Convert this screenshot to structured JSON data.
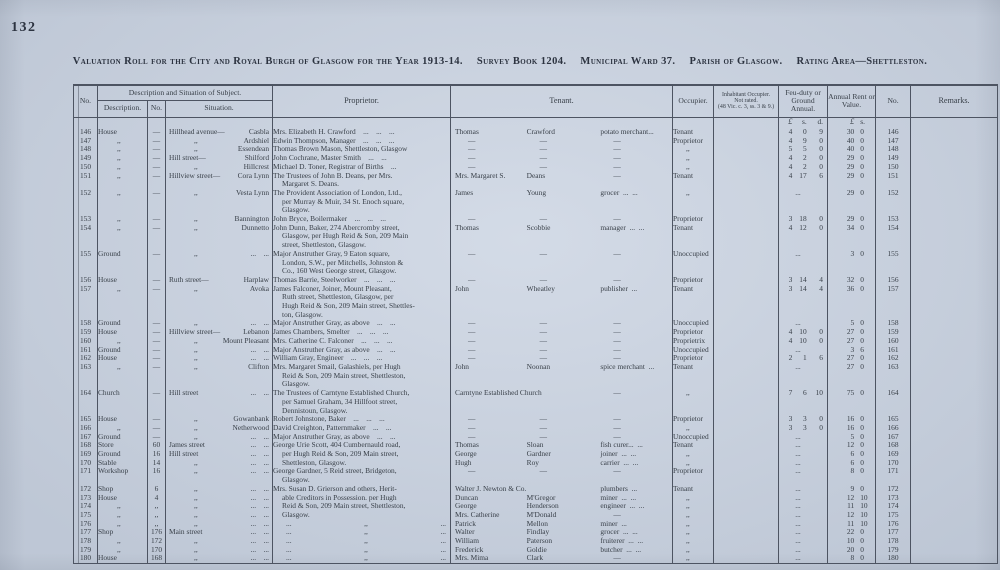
{
  "page": {
    "number": "132"
  },
  "colors": {
    "paper": "#cbd4e2",
    "ink": "#394049",
    "rule": "#4d5462"
  },
  "title": {
    "segments": [
      "Valuation Roll for the City and Royal Burgh of Glasgow for the Year 1913-14.",
      "Survey Book 1204.",
      "Municipal Ward 37.",
      "Parish of Glasgow.",
      "Rating Area—Shettleston."
    ]
  },
  "table": {
    "header": {
      "no": "No.",
      "desc_group": "Description and Situation of Subject.",
      "description": "Description.",
      "house_no": "No.",
      "situation": "Situation.",
      "proprietor": "Proprietor.",
      "tenant": "Tenant.",
      "occupier": "Occupier.",
      "inhabitant1": "Inhabitant Occupier.",
      "inhabitant2": "Not rated.",
      "inhabitant3": "(48 Vic. c. 3, ss. 3 & 9.)",
      "feu": "Feu-duty or Ground Annual.",
      "rent": "Annual Rent or Value.",
      "no_right": "No.",
      "remarks": "Remarks."
    },
    "units": {
      "feu_l": "£",
      "feu_s": "s.",
      "feu_d": "d.",
      "rent_l": "£",
      "rent_s": "s."
    },
    "rows": [
      {
        "no": "146",
        "desc": "House",
        "dno": "—",
        "sit": "Hillhead avenue—",
        "sitr": "Casbla",
        "prop": [
          "Mrs. Elizabeth H. Crawford ... ... ..."
        ],
        "t1": "Thomas",
        "t2": "Crawford",
        "t3": "potato merchant...",
        "occ": "Tenant",
        "feu": "4 0 9",
        "rent": "30 0",
        "no2": "146"
      },
      {
        "no": "147",
        "desc": ",,",
        "dno": "—",
        "sit": ",,",
        "sitr": "Ardshiel",
        "prop": [
          "Edwin Thompson, Manager ... ... ..."
        ],
        "t1": "—",
        "t2": "—",
        "t3": "—",
        "occ": "Proprietor",
        "feu": "4 9 0",
        "rent": "40 0",
        "no2": "147"
      },
      {
        "no": "148",
        "desc": ",,",
        "dno": "—",
        "sit": ",,",
        "sitr": "Essendean",
        "prop": [
          "Thomas Brown Mason, Shettleston, Glasgow"
        ],
        "t1": "—",
        "t2": "—",
        "t3": "—",
        "occ": ",,",
        "feu": "5 5 0",
        "rent": "40 0",
        "no2": "148"
      },
      {
        "no": "149",
        "desc": ",,",
        "dno": "—",
        "sit": "Hill street—",
        "sitr": "Shilford",
        "prop": [
          "John Cochrane, Master Smith ... ..."
        ],
        "t1": "—",
        "t2": "—",
        "t3": "—",
        "occ": ",,",
        "feu": "4 2 0",
        "rent": "29 0",
        "no2": "149"
      },
      {
        "no": "150",
        "desc": ",,",
        "dno": "—",
        "sit": ",,",
        "sitr": "Hillcrest",
        "prop": [
          "Michael D. Toner, Registrar of Births ..."
        ],
        "t1": "—",
        "t2": "—",
        "t3": "—",
        "occ": ",,",
        "feu": "4 2 0",
        "rent": "29 0",
        "no2": "150"
      },
      {
        "no": "151",
        "desc": ",,",
        "dno": "—",
        "sit": "Hillview street—",
        "sitr": "Cora Lynn",
        "prop": [
          "The Trustees of John B. Deans, per Mrs.",
          "Margaret S. Deans."
        ],
        "t1": "Mrs. Margaret S.",
        "t2": "Deans",
        "t3": "—",
        "occ": "Tenant",
        "feu": "4 17 6",
        "rent": "29 0",
        "no2": "151"
      },
      {
        "no": "152",
        "desc": ",,",
        "dno": "—",
        "sit": ",,",
        "sitr": "Vesta Lynn",
        "prop": [
          "The Provident Association of London, Ltd.,",
          "per Murray & Muir, 34 St. Enoch square,",
          "Glasgow."
        ],
        "t1": "James",
        "t2": "Young",
        "t3": "grocer ... ...",
        "occ": ",,",
        "feu": "...",
        "rent": "29 0",
        "no2": "152"
      },
      {
        "no": "153",
        "desc": ",,",
        "dno": "—",
        "sit": ",,",
        "sitr": "Bannington",
        "prop": [
          "John Bryce, Boilermaker ... ... ..."
        ],
        "t1": "—",
        "t2": "—",
        "t3": "—",
        "occ": "Proprietor",
        "feu": "3 18 0",
        "rent": "29 0",
        "no2": "153"
      },
      {
        "no": "154",
        "desc": ",,",
        "dno": "—",
        "sit": ",,",
        "sitr": "Dunnetto",
        "prop": [
          "John Dunn, Baker, 274 Abercromby street,",
          "Glasgow, per Hugh Reid & Son, 209 Main",
          "street, Shettleston, Glasgow."
        ],
        "t1": "Thomas",
        "t2": "Scobbie",
        "t3": "manager ... ...",
        "occ": "Tenant",
        "feu": "4 12 0",
        "rent": "34 0",
        "no2": "154"
      },
      {
        "no": "155",
        "desc": "Ground",
        "dno": "—",
        "sit": ",,",
        "sitr": "...  ...",
        "prop": [
          "Major Anstruther Gray, 9 Eaton square,",
          "London, S.W., per Mitchells, Johnston &",
          "Co., 160 West George street, Glasgow."
        ],
        "t1": "—",
        "t2": "—",
        "t3": "—",
        "occ": "Unoccupied",
        "feu": "...",
        "rent": "3 0",
        "no2": "155"
      },
      {
        "no": "156",
        "desc": "House",
        "dno": "—",
        "sit": "Ruth street—",
        "sitr": "Harplaw",
        "prop": [
          "Thomas Barrie, Steelworker ... ... ..."
        ],
        "t1": "—",
        "t2": "—",
        "t3": "—",
        "occ": "Proprietor",
        "feu": "3 14 4",
        "rent": "32 0",
        "no2": "156"
      },
      {
        "no": "157",
        "desc": ",,",
        "dno": "—",
        "sit": ",,",
        "sitr": "Avoka",
        "prop": [
          "James Falconer, Joiner, Mount Pleasant,",
          "Ruth street, Shettleston, Glasgow, per",
          "Hugh Reid & Son, 209 Main street, Shettles-",
          "ton, Glasgow."
        ],
        "t1": "John",
        "t2": "Wheatley",
        "t3": "publisher ...",
        "occ": "Tenant",
        "feu": "3 14 4",
        "rent": "36 0",
        "no2": "157"
      },
      {
        "no": "158",
        "desc": "Ground",
        "dno": "—",
        "sit": ",,",
        "sitr": "...  ...",
        "prop": [
          "Major Anstruther Gray, as above ... ..."
        ],
        "t1": "—",
        "t2": "—",
        "t3": "—",
        "occ": "Unoccupied",
        "feu": "...",
        "rent": "5 0",
        "no2": "158"
      },
      {
        "no": "159",
        "desc": "House",
        "dno": "—",
        "sit": "Hillview street—",
        "sitr": "Lebanon",
        "prop": [
          "James Chambers, Smelter ... ... ..."
        ],
        "t1": "—",
        "t2": "—",
        "t3": "—",
        "occ": "Proprietor",
        "feu": "4 10 0",
        "rent": "27 0",
        "no2": "159"
      },
      {
        "no": "160",
        "desc": ",,",
        "dno": "—",
        "sit": ",,",
        "sitr": "Mount Pleasant",
        "prop": [
          "Mrs. Catherine C. Falconer ... ... ..."
        ],
        "t1": "—",
        "t2": "—",
        "t3": "—",
        "occ": "Proprietrix",
        "feu": "4 10 0",
        "rent": "27 0",
        "no2": "160"
      },
      {
        "no": "161",
        "desc": "Ground",
        "dno": "—",
        "sit": ",,",
        "sitr": "...  ...",
        "prop": [
          "Major Anstruther Gray, as above ... ..."
        ],
        "t1": "—",
        "t2": "—",
        "t3": "—",
        "occ": "Unoccupied",
        "feu": "...",
        "rent": "3 6",
        "no2": "161"
      },
      {
        "no": "162",
        "desc": "House",
        "dno": "—",
        "sit": ",,",
        "sitr": "...  ...",
        "prop": [
          "William Gray, Engineer ... ... ..."
        ],
        "t1": "—",
        "t2": "—",
        "t3": "—",
        "occ": "Proprietor",
        "feu": "2 1 6",
        "rent": "27 0",
        "no2": "162"
      },
      {
        "no": "163",
        "desc": ",,",
        "dno": "—",
        "sit": ",,",
        "sitr": "Clifton",
        "prop": [
          "Mrs. Margaret Smail, Galashiels, per Hugh",
          "Reid & Son, 209 Main street, Shettleston,",
          "Glasgow."
        ],
        "t1": "John",
        "t2": "Noonan",
        "t3": "spice merchant ...",
        "occ": "Tenant",
        "feu": "...",
        "rent": "27 0",
        "no2": "163"
      },
      {
        "no": "164",
        "desc": "Church",
        "dno": "—",
        "sit": "Hill street",
        "sitr": "...  ...",
        "prop": [
          "The Trustees of Carntyne Established Church,",
          "per Samuel Graham, 34 Hillfoot street,",
          "Dennistoun, Glasgow."
        ],
        "ts": true,
        "t1": "Carntyne Established Church",
        "t3": "—",
        "occ": ",,",
        "feu": "7 6 10",
        "rent": "75 0",
        "no2": "164"
      },
      {
        "no": "165",
        "desc": "House",
        "dno": "—",
        "sit": ",,",
        "sitr": "Gowanbank",
        "prop": [
          "Robert Johnstone, Baker ... ... ..."
        ],
        "t1": "—",
        "t2": "—",
        "t3": "—",
        "occ": "Proprietor",
        "feu": "3 3 0",
        "rent": "16 0",
        "no2": "165"
      },
      {
        "no": "166",
        "desc": ",,",
        "dno": "—",
        "sit": ",,",
        "sitr": "Netherwood",
        "prop": [
          "David Creighton, Patternmaker ... ..."
        ],
        "t1": "—",
        "t2": "—",
        "t3": "—",
        "occ": ",,",
        "feu": "3 3 0",
        "rent": "16 0",
        "no2": "166"
      },
      {
        "no": "167",
        "desc": "Ground",
        "dno": "—",
        "sit": ",,",
        "sitr": "...  ...",
        "prop": [
          "Major Anstruther Gray, as above ... ..."
        ],
        "t1": "—",
        "t2": "—",
        "t3": "—",
        "occ": "Unoccupied",
        "feu": "...",
        "rent": "5 0",
        "no2": "167"
      },
      {
        "no": "168",
        "desc": "Store",
        "dno": "60",
        "sit": "James street",
        "sitr": "...  ...",
        "prop": [
          "George Urie Scott, 404 Cumbernauld road,"
        ],
        "t1": "Thomas",
        "t2": "Sloan",
        "t3": "fish curer... ...",
        "occ": "Tenant",
        "feu": "...",
        "rent": "12 0",
        "no2": "168"
      },
      {
        "no": "169",
        "desc": "Ground",
        "dno": "16",
        "sit": "Hill street",
        "sitr": "...  ...",
        "prop": [
          "per Hugh Reid & Son, 209 Main street,"
        ],
        "pi": true,
        "t1": "George",
        "t2": "Gardner",
        "t3": "joiner ... ...",
        "occ": ",,",
        "feu": "...",
        "rent": "6 0",
        "no2": "169"
      },
      {
        "no": "170",
        "desc": "Stable",
        "dno": "14",
        "sit": ",,",
        "sitr": "...  ...",
        "prop": [
          "Shettleston, Glasgow."
        ],
        "pi": true,
        "t1": "Hugh",
        "t2": "Roy",
        "t3": "carrier ... ...",
        "occ": ",,",
        "feu": "...",
        "rent": "6 0",
        "no2": "170"
      },
      {
        "no": "171",
        "desc": "Workshop",
        "dno": "16",
        "sit": ",,",
        "sitr": "...  ...",
        "prop": [
          "George Gardner, 5 Reid street, Bridgeton,",
          "Glasgow."
        ],
        "t1": "—",
        "t2": "—",
        "t3": "—",
        "occ": "Proprietor",
        "feu": "...",
        "rent": "8 0",
        "no2": "171"
      },
      {
        "no": "172",
        "desc": "Shop",
        "dno": "6",
        "sit": ",,",
        "sitr": "...  ...",
        "prop": [
          "Mrs. Susan D. Grierson and others, Herit-"
        ],
        "ts": true,
        "t1": "Walter J. Newton & Co.",
        "t3": "plumbers ...",
        "occ": "Tenant",
        "feu": "...",
        "rent": "9 0",
        "no2": "172"
      },
      {
        "no": "173",
        "desc": "House",
        "dno": "4",
        "sit": ",,",
        "sitr": "...  ...",
        "prop": [
          "able Creditors in Possession. per Hugh"
        ],
        "pi": true,
        "t1": "Duncan",
        "t2": "M'Gregor",
        "t3": "miner ... ...",
        "occ": ",,",
        "feu": "...",
        "rent": "12 10",
        "no2": "173"
      },
      {
        "no": "174",
        "desc": ",,",
        "dno": ",,",
        "sit": ",,",
        "sitr": "...  ...",
        "prop": [
          "Reid & Son, 209 Main street, Shettleston,"
        ],
        "pi": true,
        "t1": "George",
        "t2": "Henderson",
        "t3": "engineer ... ...",
        "occ": ",,",
        "feu": "...",
        "rent": "11 10",
        "no2": "174"
      },
      {
        "no": "175",
        "desc": ",,",
        "dno": ",,",
        "sit": ",,",
        "sitr": "...  ...",
        "prop": [
          "Glasgow."
        ],
        "pi": true,
        "t1": "Mrs. Catherine",
        "t2": "M'Donald",
        "t3": "—",
        "occ": ",,",
        "feu": "...",
        "rent": "12 10",
        "no2": "175"
      },
      {
        "no": "176",
        "desc": ",,",
        "dno": ",,",
        "sit": ",,",
        "sitr": "...  ...",
        "pd": true,
        "prop": [
          "...",
          ",,",
          "..."
        ],
        "t1": "Patrick",
        "t2": "Mellon",
        "t3": "miner ...",
        "occ": ",,",
        "feu": "...",
        "rent": "11 10",
        "no2": "176"
      },
      {
        "no": "177",
        "desc": "Shop",
        "dno": "176",
        "sit": "Main street",
        "sitr": "...  ...",
        "pd": true,
        "prop": [
          "...",
          ",,",
          "..."
        ],
        "t1": "Walter",
        "t2": "Findlay",
        "t3": "grocer ... ...",
        "occ": ",,",
        "feu": "...",
        "rent": "22 0",
        "no2": "177"
      },
      {
        "no": "178",
        "desc": ",,",
        "dno": "172",
        "sit": ",,",
        "sitr": "...  ...",
        "pd": true,
        "prop": [
          "...",
          ",,",
          "..."
        ],
        "t1": "William",
        "t2": "Paterson",
        "t3": "fruiterer ... ...",
        "occ": ",,",
        "feu": "...",
        "rent": "10 0",
        "no2": "178"
      },
      {
        "no": "179",
        "desc": ",,",
        "dno": "170",
        "sit": ",,",
        "sitr": "...  ...",
        "pd": true,
        "prop": [
          "...",
          ",,",
          "..."
        ],
        "t1": "Frederick",
        "t2": "Goldie",
        "t3": "butcher ... ...",
        "occ": ",,",
        "feu": "...",
        "rent": "20 0",
        "no2": "179"
      },
      {
        "no": "180",
        "desc": "House",
        "dno": "168",
        "sit": ",,",
        "sitr": "...  ...",
        "pd": true,
        "prop": [
          "...",
          ",,",
          "..."
        ],
        "t1": "Mrs. Mima",
        "t2": "Clark",
        "t3": "—",
        "occ": ",,",
        "feu": "...",
        "rent": "8 0",
        "no2": "180"
      }
    ]
  }
}
